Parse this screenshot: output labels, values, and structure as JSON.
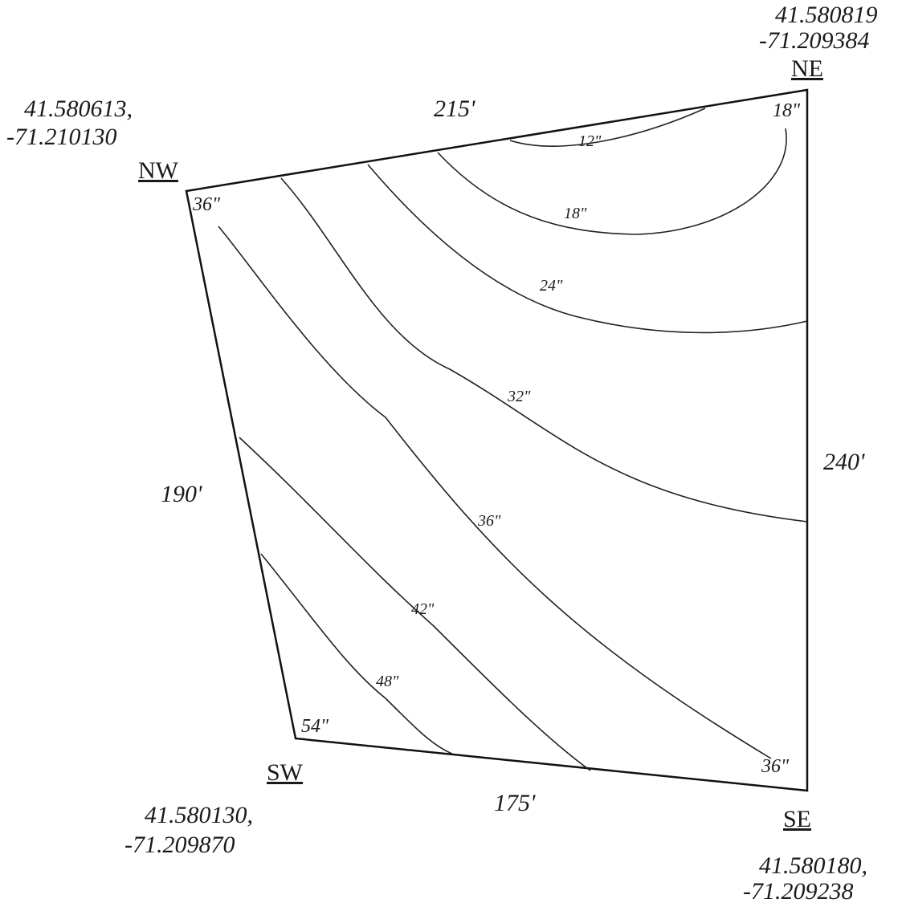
{
  "corners": {
    "nw": {
      "name": "NW",
      "lat": "41.580613,",
      "lon": "-71.210130",
      "depth": "36\""
    },
    "ne": {
      "name": "NE",
      "lat": "41.580819",
      "lon": "-71.209384",
      "depth": "18\""
    },
    "se": {
      "name": "SE",
      "lat": "41.580180,",
      "lon": "-71.209238",
      "depth": "36\""
    },
    "sw": {
      "name": "SW",
      "lat": "41.580130,",
      "lon": "-71.209870",
      "depth": "54\""
    }
  },
  "edges": {
    "north": "215'",
    "east": "240'",
    "south": "175'",
    "west": "190'"
  },
  "contours": [
    "12\"",
    "18\"",
    "24\"",
    "32\"",
    "36\"",
    "42\"",
    "48\""
  ]
}
